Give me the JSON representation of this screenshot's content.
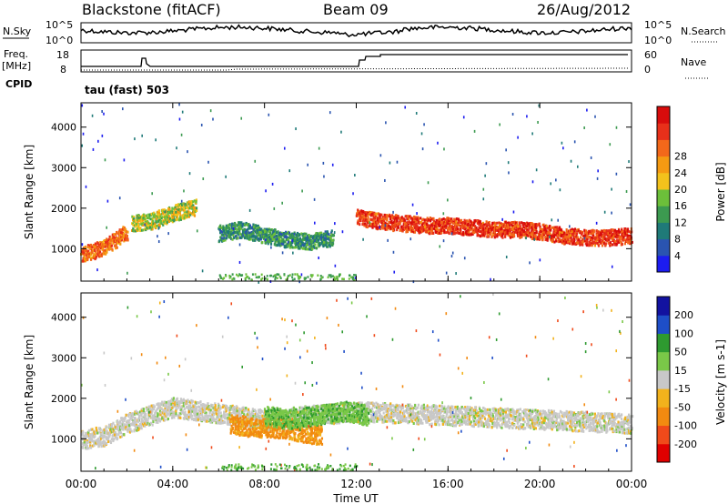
{
  "header": {
    "station": "Blackstone (fitACF)",
    "beam": "Beam 09",
    "date": "26/Aug/2012"
  },
  "panels": {
    "noise": {
      "left_label": "N.Sky",
      "right_label": "N.Search",
      "left_ticks": [
        "10^5",
        "10^0"
      ],
      "right_ticks": [
        "10^5",
        "10^0"
      ]
    },
    "freq": {
      "left_label_1": "Freq.",
      "left_label_2": "[MHz]",
      "right_label": "Nave",
      "left_ticks": [
        "18",
        "8"
      ],
      "right_ticks": [
        "60",
        "0"
      ],
      "cpid_label": "CPID",
      "cpid_text": "tau (fast) 503"
    }
  },
  "colors": {
    "power": [
      "#1c1cf0",
      "#2a54b0",
      "#1f7a78",
      "#3c9a50",
      "#6cbf3a",
      "#f3c21c",
      "#f59a12",
      "#f3681a",
      "#e8301a",
      "#d80c0c"
    ],
    "velocity": [
      "#e00000",
      "#f04a1a",
      "#f28a10",
      "#f2b21c",
      "#c8c8c8",
      "#7ac848",
      "#2e9a30",
      "#1e4ec8",
      "#1212a0"
    ]
  },
  "chart_data": [
    {
      "type": "heatmap",
      "title": "",
      "xlabel": "Time UT",
      "ylabel": "Slant Range [km]",
      "x_ticks": [
        "00:00",
        "04:00",
        "08:00",
        "12:00",
        "16:00",
        "20:00",
        "00:00"
      ],
      "y_ticks": [
        "1000",
        "2000",
        "3000",
        "4000"
      ],
      "ylim": [
        200,
        4600
      ],
      "colorbar": {
        "label": "Power [dB]",
        "ticks": [
          "4",
          "8",
          "12",
          "16",
          "20",
          "24",
          "28"
        ]
      },
      "series": [
        {
          "x": [
            0.0,
            0.5,
            1.0,
            1.5,
            2.0
          ],
          "y": [
            900,
            960,
            1080,
            1250,
            1450
          ],
          "value": 24
        },
        {
          "x": [
            2.2,
            3.0,
            4.0,
            5.0
          ],
          "y": [
            1650,
            1700,
            1900,
            2050
          ],
          "value": 16
        },
        {
          "x": [
            12.0,
            12.5,
            13.0,
            14.0,
            15.0,
            16.0,
            17.0,
            18.0,
            19.0,
            20.0,
            21.0,
            22.0,
            23.0,
            24.0
          ],
          "y": [
            1800,
            1750,
            1700,
            1650,
            1600,
            1600,
            1550,
            1500,
            1500,
            1450,
            1350,
            1300,
            1300,
            1350
          ],
          "value": 27
        },
        {
          "x": [
            6.0,
            7.0,
            8.0,
            9.0,
            10.0,
            11.0
          ],
          "y": [
            1400,
            1500,
            1350,
            1250,
            1200,
            1300
          ],
          "value": 10
        }
      ]
    },
    {
      "type": "heatmap",
      "title": "",
      "xlabel": "Time UT",
      "ylabel": "Slant Range [km]",
      "x_ticks": [
        "00:00",
        "04:00",
        "08:00",
        "12:00",
        "16:00",
        "20:00",
        "00:00"
      ],
      "y_ticks": [
        "1000",
        "2000",
        "3000",
        "4000"
      ],
      "ylim": [
        200,
        4600
      ],
      "colorbar": {
        "label": "Velocity [m s-1]",
        "ticks": [
          "200",
          "100",
          "50",
          "15",
          "-15",
          "-50",
          "-100",
          "-200"
        ]
      },
      "series": [
        {
          "x": [
            0.0,
            1.0,
            2.0,
            4.0,
            8.0,
            12.0,
            16.0,
            20.0,
            24.0
          ],
          "y": [
            1000,
            1100,
            1400,
            1800,
            1500,
            1700,
            1600,
            1500,
            1400
          ],
          "value": 0
        },
        {
          "x": [
            6.5,
            7.5,
            8.5,
            10.5
          ],
          "y": [
            1400,
            1300,
            1300,
            1100
          ],
          "value": -60
        },
        {
          "x": [
            8.0,
            9.0,
            11.5,
            12.5
          ],
          "y": [
            1600,
            1500,
            1700,
            1600
          ],
          "value": 40
        }
      ]
    }
  ]
}
